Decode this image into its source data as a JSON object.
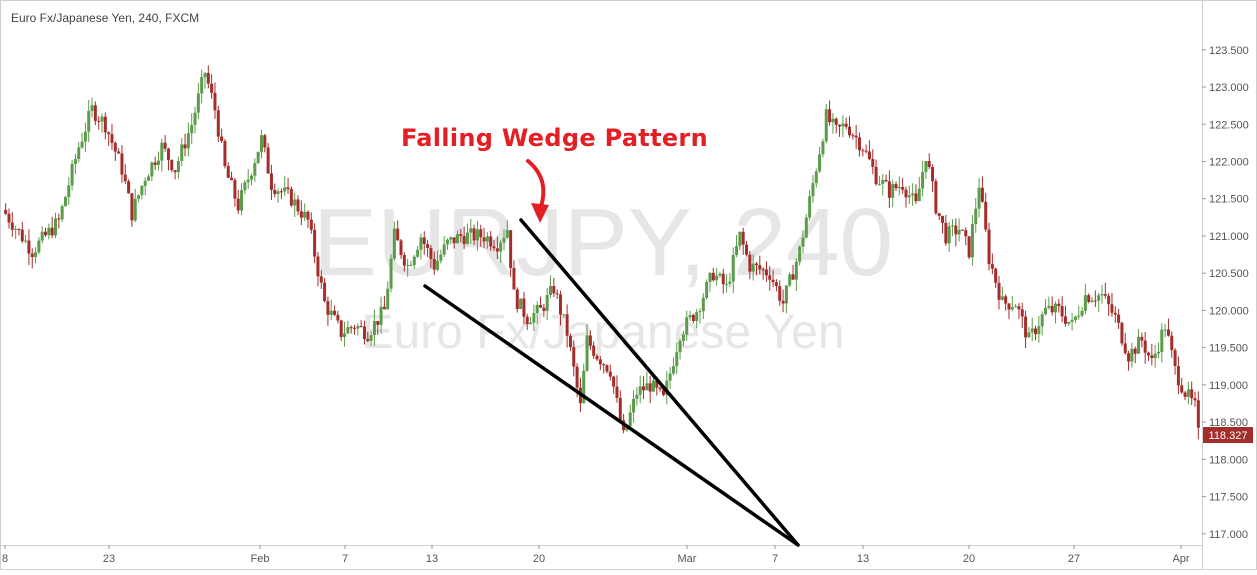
{
  "header": {
    "title": "Euro Fx/Japanese Yen, 240, FXCM"
  },
  "annotation": {
    "text": "Falling Wedge Pattern"
  },
  "watermark": {
    "line1": "EURJPY, 240",
    "line2": "Euro Fx/Japanese Yen"
  },
  "colors": {
    "up": "#5b9c4a",
    "down": "#a32d2b",
    "price_tag": "#a32d2b",
    "arrow": "#e31e24",
    "lines": "#000000"
  },
  "chart_data": {
    "type": "candlestick",
    "title": "Euro Fx/Japanese Yen, 240, FXCM",
    "ylim": [
      116.85,
      123.9
    ],
    "y_ticks": [
      "123.500",
      "123.000",
      "122.500",
      "122.000",
      "121.500",
      "121.000",
      "120.500",
      "120.000",
      "119.500",
      "119.000",
      "118.500",
      "118.000",
      "117.500",
      "117.000"
    ],
    "x_ticks": [
      "8",
      "23",
      "Feb",
      "7",
      "13",
      "20",
      "Mar",
      "7",
      "13",
      "20",
      "27",
      "Apr"
    ],
    "last_price": "118.327",
    "anchors": [
      {
        "t": 0,
        "p": 121.3
      },
      {
        "t": 8,
        "p": 120.8
      },
      {
        "t": 16,
        "p": 121.2
      },
      {
        "t": 22,
        "p": 122.2
      },
      {
        "t": 26,
        "p": 122.7
      },
      {
        "t": 30,
        "p": 122.5
      },
      {
        "t": 35,
        "p": 121.9
      },
      {
        "t": 38,
        "p": 121.3
      },
      {
        "t": 42,
        "p": 121.8
      },
      {
        "t": 47,
        "p": 122.2
      },
      {
        "t": 51,
        "p": 121.9
      },
      {
        "t": 56,
        "p": 122.5
      },
      {
        "t": 60,
        "p": 123.2
      },
      {
        "t": 63,
        "p": 122.7
      },
      {
        "t": 66,
        "p": 121.9
      },
      {
        "t": 70,
        "p": 121.4
      },
      {
        "t": 74,
        "p": 121.9
      },
      {
        "t": 77,
        "p": 122.3
      },
      {
        "t": 80,
        "p": 121.7
      },
      {
        "t": 86,
        "p": 121.5
      },
      {
        "t": 91,
        "p": 121.2
      },
      {
        "t": 96,
        "p": 120.1
      },
      {
        "t": 101,
        "p": 119.7
      },
      {
        "t": 105,
        "p": 119.8
      },
      {
        "t": 109,
        "p": 119.7
      },
      {
        "t": 114,
        "p": 120.0
      },
      {
        "t": 117,
        "p": 121.0
      },
      {
        "t": 121,
        "p": 120.6
      },
      {
        "t": 125,
        "p": 121.0
      },
      {
        "t": 129,
        "p": 120.6
      },
      {
        "t": 133,
        "p": 120.9
      },
      {
        "t": 137,
        "p": 121.0
      },
      {
        "t": 144,
        "p": 121.0
      },
      {
        "t": 148,
        "p": 120.9
      },
      {
        "t": 151,
        "p": 121.1
      },
      {
        "t": 153,
        "p": 120.2
      },
      {
        "t": 157,
        "p": 119.9
      },
      {
        "t": 161,
        "p": 120.0
      },
      {
        "t": 165,
        "p": 120.3
      },
      {
        "t": 169,
        "p": 119.7
      },
      {
        "t": 173,
        "p": 118.7
      },
      {
        "t": 175,
        "p": 119.6
      },
      {
        "t": 178,
        "p": 119.4
      },
      {
        "t": 182,
        "p": 119.2
      },
      {
        "t": 186,
        "p": 118.3
      },
      {
        "t": 190,
        "p": 118.9
      },
      {
        "t": 194,
        "p": 119.0
      },
      {
        "t": 198,
        "p": 118.8
      },
      {
        "t": 203,
        "p": 119.7
      },
      {
        "t": 208,
        "p": 120.0
      },
      {
        "t": 213,
        "p": 120.5
      },
      {
        "t": 217,
        "p": 120.3
      },
      {
        "t": 221,
        "p": 121.0
      },
      {
        "t": 224,
        "p": 120.6
      },
      {
        "t": 230,
        "p": 120.5
      },
      {
        "t": 234,
        "p": 120.1
      },
      {
        "t": 239,
        "p": 120.8
      },
      {
        "t": 243,
        "p": 121.7
      },
      {
        "t": 247,
        "p": 122.6
      },
      {
        "t": 250,
        "p": 122.4
      },
      {
        "t": 253,
        "p": 122.5
      },
      {
        "t": 258,
        "p": 122.2
      },
      {
        "t": 262,
        "p": 121.8
      },
      {
        "t": 266,
        "p": 121.6
      },
      {
        "t": 270,
        "p": 121.7
      },
      {
        "t": 274,
        "p": 121.4
      },
      {
        "t": 277,
        "p": 122.1
      },
      {
        "t": 280,
        "p": 121.4
      },
      {
        "t": 283,
        "p": 121.0
      },
      {
        "t": 287,
        "p": 121.1
      },
      {
        "t": 290,
        "p": 120.8
      },
      {
        "t": 293,
        "p": 121.7
      },
      {
        "t": 296,
        "p": 120.7
      },
      {
        "t": 300,
        "p": 120.1
      },
      {
        "t": 304,
        "p": 120.1
      },
      {
        "t": 308,
        "p": 119.6
      },
      {
        "t": 313,
        "p": 120.0
      },
      {
        "t": 317,
        "p": 120.0
      },
      {
        "t": 321,
        "p": 119.8
      },
      {
        "t": 325,
        "p": 120.2
      },
      {
        "t": 330,
        "p": 120.2
      },
      {
        "t": 334,
        "p": 119.9
      },
      {
        "t": 338,
        "p": 119.4
      },
      {
        "t": 342,
        "p": 119.6
      },
      {
        "t": 345,
        "p": 119.3
      },
      {
        "t": 349,
        "p": 119.8
      },
      {
        "t": 352,
        "p": 119.2
      },
      {
        "t": 355,
        "p": 118.9
      },
      {
        "t": 358,
        "p": 118.7
      },
      {
        "t": 359,
        "p": 118.33
      }
    ],
    "candle_count": 360
  }
}
